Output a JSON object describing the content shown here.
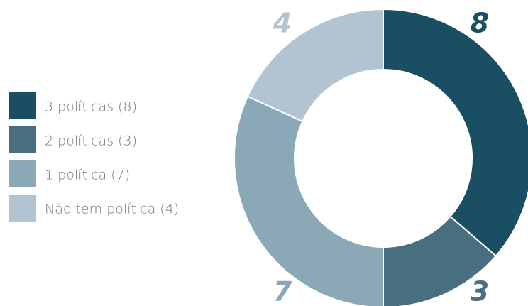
{
  "chart_data": {
    "type": "donut",
    "categories": [
      "3 políticas (8)",
      "2 políticas (3)",
      "1 política (7)",
      "Não tem política (4)"
    ],
    "values": [
      8,
      3,
      7,
      4
    ],
    "colors": [
      "#1a4f63",
      "#486f80",
      "#8ba8b7",
      "#b2c4d1"
    ],
    "legend": "left"
  }
}
